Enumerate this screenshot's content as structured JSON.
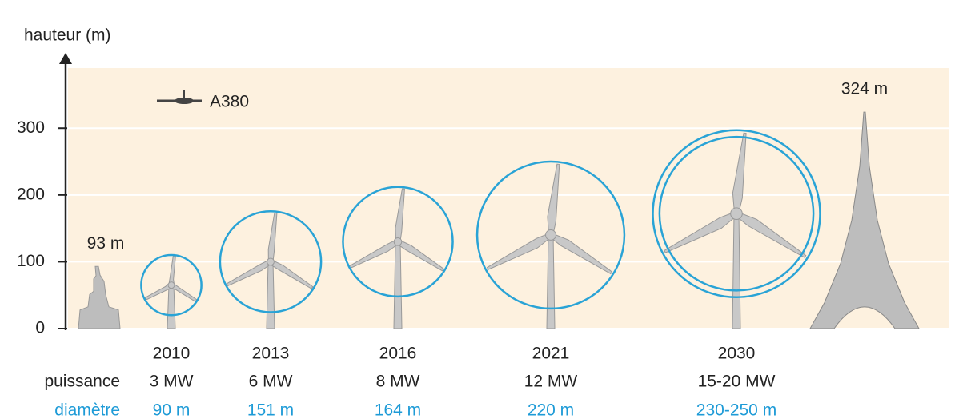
{
  "chart_data": {
    "type": "turbine",
    "y_label": "hauteur (m)",
    "ylim": [
      0,
      390
    ],
    "yticks": [
      0,
      100,
      200,
      300
    ],
    "grid": true,
    "aircraft": "A380",
    "row_labels": {
      "power": "puissance",
      "diameter": "diamètre"
    },
    "turbines": {
      "years": [
        "2010",
        "2013",
        "2016",
        "2021",
        "2030"
      ],
      "power": [
        "3 MW",
        "6 MW",
        "8 MW",
        "12 MW",
        "15-20 MW"
      ],
      "hub_heights": [
        65,
        100,
        130,
        140,
        172
      ],
      "diameters": [
        [
          90
        ],
        [
          151
        ],
        [
          164
        ],
        [
          220
        ],
        [
          230,
          250
        ]
      ],
      "diameter_labels": [
        "90 m",
        "151 m",
        "164 m",
        "220 m",
        "230-250 m"
      ],
      "color": "#29a3d6"
    },
    "landmarks": [
      {
        "value": 93,
        "label": "93 m"
      },
      {
        "value": 324,
        "label": "324 m"
      }
    ]
  }
}
